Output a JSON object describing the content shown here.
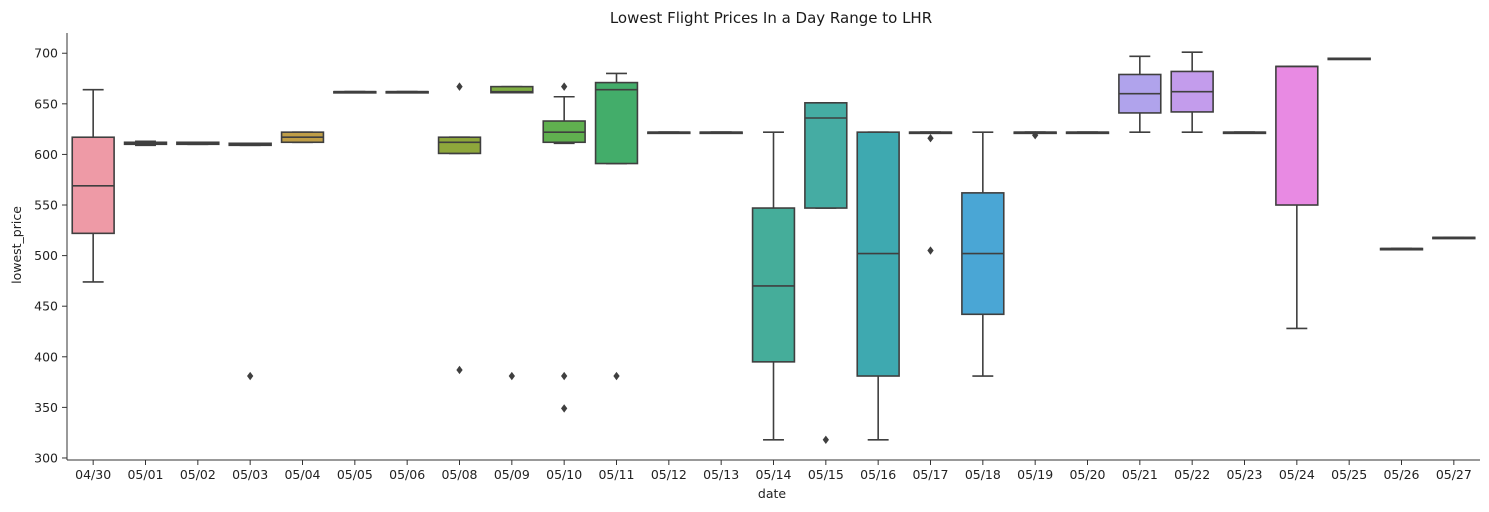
{
  "chart_data": {
    "type": "box",
    "title": "Lowest Flight Prices In a Day Range to LHR",
    "xlabel": "date",
    "ylabel": "lowest_price",
    "ylim": [
      298,
      720
    ],
    "yticks": [
      300,
      350,
      400,
      450,
      500,
      550,
      600,
      650,
      700
    ],
    "grid": false,
    "categories": [
      "04/30",
      "05/01",
      "05/02",
      "05/03",
      "05/04",
      "05/05",
      "05/06",
      "05/08",
      "05/09",
      "05/10",
      "05/11",
      "05/12",
      "05/13",
      "05/14",
      "05/15",
      "05/16",
      "05/17",
      "05/18",
      "05/19",
      "05/20",
      "05/21",
      "05/22",
      "05/23",
      "05/24",
      "05/25",
      "05/26",
      "05/27"
    ],
    "boxes": [
      {
        "date": "04/30",
        "whislo": 474,
        "q1": 522,
        "med": 569,
        "q3": 617,
        "whishi": 664,
        "fliers": [],
        "color": "#ee9aa6"
      },
      {
        "date": "05/01",
        "whislo": 609,
        "q1": 610,
        "med": 611,
        "q3": 612,
        "whishi": 613,
        "fliers": [],
        "color": "#e0a071"
      },
      {
        "date": "05/02",
        "whislo": 610,
        "q1": 610,
        "med": 611,
        "q3": 612,
        "whishi": 612,
        "fliers": [],
        "color": "#d9a65d"
      },
      {
        "date": "05/03",
        "whislo": 609,
        "q1": 609,
        "med": 610,
        "q3": 611,
        "whishi": 611,
        "fliers": [
          381
        ],
        "color": "#cfa54c"
      },
      {
        "date": "05/04",
        "whislo": 612,
        "q1": 612,
        "med": 617,
        "q3": 622,
        "whishi": 622,
        "fliers": [],
        "color": "#bf9e47"
      },
      {
        "date": "05/05",
        "whislo": 662,
        "q1": 662,
        "med": 662,
        "q3": 662,
        "whishi": 662,
        "fliers": [],
        "color": "#a8a03f"
      },
      {
        "date": "05/06",
        "whislo": 662,
        "q1": 662,
        "med": 662,
        "q3": 662,
        "whishi": 662,
        "fliers": [],
        "color": "#9aa33e"
      },
      {
        "date": "05/08",
        "whislo": 601,
        "q1": 601,
        "med": 612,
        "q3": 617,
        "whishi": 617,
        "fliers": [
          387,
          667
        ],
        "color": "#8ea73b"
      },
      {
        "date": "05/09",
        "whislo": 661,
        "q1": 661,
        "med": 662,
        "q3": 667,
        "whishi": 667,
        "fliers": [
          381
        ],
        "color": "#7fae42"
      },
      {
        "date": "05/10",
        "whislo": 611,
        "q1": 612,
        "med": 622,
        "q3": 633,
        "whishi": 657,
        "fliers": [
          349,
          381,
          667
        ],
        "color": "#60b04f"
      },
      {
        "date": "05/11",
        "whislo": 591,
        "q1": 591,
        "med": 664,
        "q3": 671,
        "whishi": 680,
        "fliers": [
          381
        ],
        "color": "#43ad6a"
      },
      {
        "date": "05/12",
        "whislo": 622,
        "q1": 622,
        "med": 622,
        "q3": 622,
        "whishi": 622,
        "fliers": [],
        "color": "#44ad80"
      },
      {
        "date": "05/13",
        "whislo": 622,
        "q1": 622,
        "med": 622,
        "q3": 622,
        "whishi": 622,
        "fliers": [],
        "color": "#45ad8f"
      },
      {
        "date": "05/14",
        "whislo": 318,
        "q1": 395,
        "med": 470,
        "q3": 547,
        "whishi": 622,
        "fliers": [],
        "color": "#45ad9a"
      },
      {
        "date": "05/15",
        "whislo": 547,
        "q1": 547,
        "med": 636,
        "q3": 651,
        "whishi": 651,
        "fliers": [
          318
        ],
        "color": "#45aca3"
      },
      {
        "date": "05/16",
        "whislo": 318,
        "q1": 381,
        "med": 502,
        "q3": 622,
        "whishi": 622,
        "fliers": [],
        "color": "#3ea9b0"
      },
      {
        "date": "05/17",
        "whislo": 622,
        "q1": 622,
        "med": 622,
        "q3": 622,
        "whishi": 622,
        "fliers": [
          505,
          616
        ],
        "color": "#3ea9bc"
      },
      {
        "date": "05/18",
        "whislo": 381,
        "q1": 442,
        "med": 502,
        "q3": 562,
        "whishi": 622,
        "fliers": [],
        "color": "#4aa6d5"
      },
      {
        "date": "05/19",
        "whislo": 622,
        "q1": 622,
        "med": 622,
        "q3": 622,
        "whishi": 622,
        "fliers": [
          619
        ],
        "color": "#5aa0e2"
      },
      {
        "date": "05/20",
        "whislo": 622,
        "q1": 622,
        "med": 622,
        "q3": 622,
        "whishi": 622,
        "fliers": [],
        "color": "#7d9ce8"
      },
      {
        "date": "05/21",
        "whislo": 622,
        "q1": 641,
        "med": 660,
        "q3": 679,
        "whishi": 697,
        "fliers": [],
        "color": "#b0a3ec"
      },
      {
        "date": "05/22",
        "whislo": 622,
        "q1": 642,
        "med": 662,
        "q3": 682,
        "whishi": 701,
        "fliers": [],
        "color": "#c39cec"
      },
      {
        "date": "05/23",
        "whislo": 622,
        "q1": 622,
        "med": 622,
        "q3": 622,
        "whishi": 622,
        "fliers": [],
        "color": "#d890e6"
      },
      {
        "date": "05/24",
        "whislo": 428,
        "q1": 550,
        "med": 687,
        "q3": 687,
        "whishi": 687,
        "fliers": [],
        "color": "#e88ae3"
      },
      {
        "date": "05/25",
        "whislo": 695,
        "q1": 695,
        "med": 695,
        "q3": 695,
        "whishi": 695,
        "fliers": [],
        "color": "#ec8ad8"
      },
      {
        "date": "05/26",
        "whislo": 507,
        "q1": 507,
        "med": 507,
        "q3": 507,
        "whishi": 507,
        "fliers": [],
        "color": "#ef8dc9"
      },
      {
        "date": "05/27",
        "whislo": 518,
        "q1": 518,
        "med": 518,
        "q3": 518,
        "whishi": 518,
        "fliers": [],
        "color": "#f091bb"
      }
    ],
    "line_color": "#3f3f3f",
    "axis_color": "#333333"
  }
}
